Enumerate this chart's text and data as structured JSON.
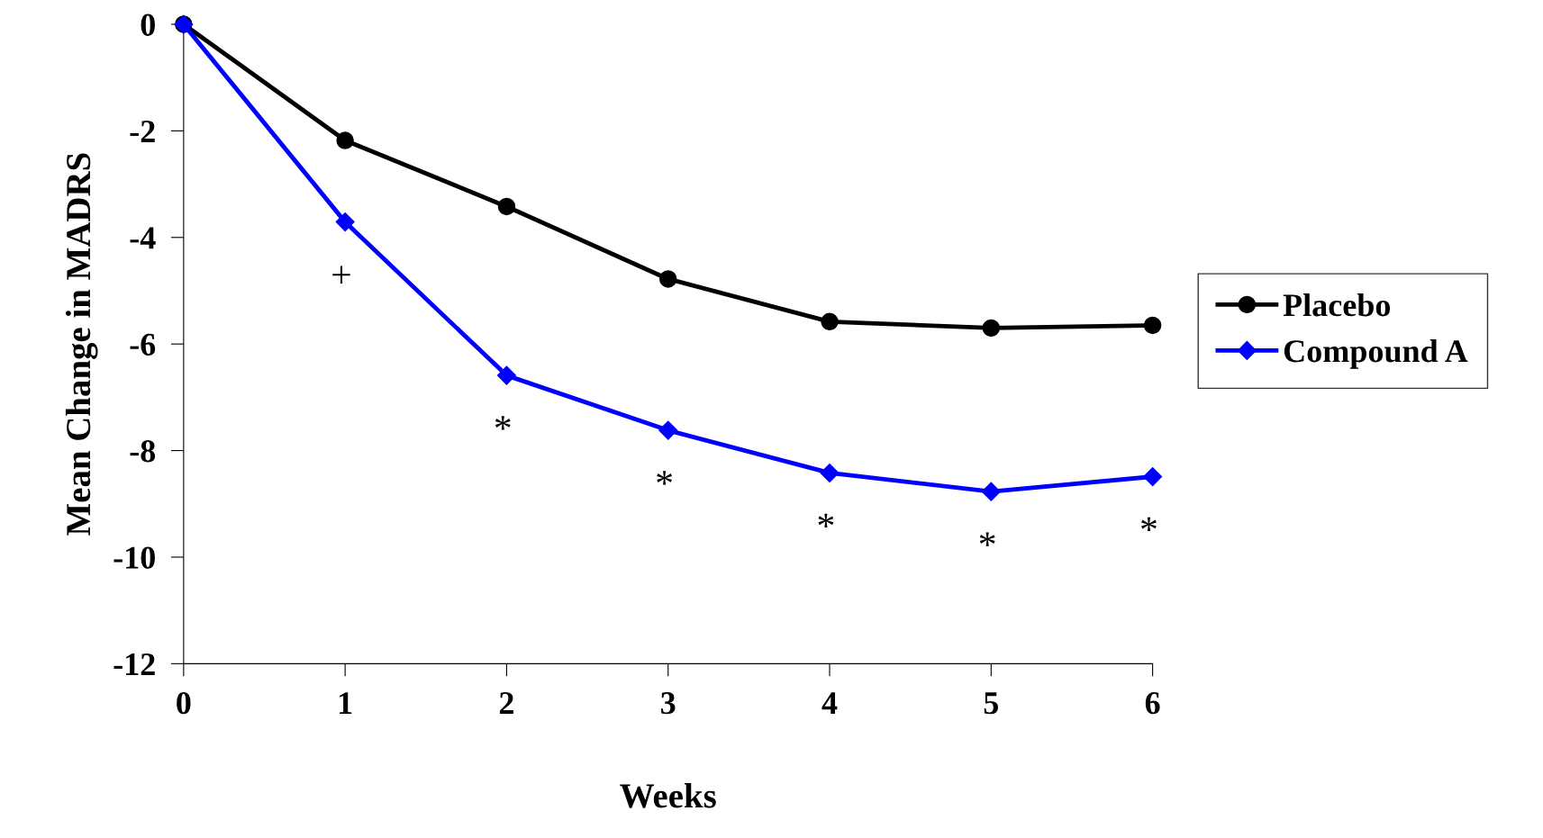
{
  "chart_data": {
    "type": "line",
    "xlabel": "Weeks",
    "ylabel": "Mean Change in MADRS",
    "x": [
      0,
      1,
      2,
      3,
      4,
      5,
      6
    ],
    "xlim": [
      0,
      6
    ],
    "xticks": [
      0,
      1,
      2,
      3,
      4,
      5,
      6
    ],
    "ylim": [
      -12,
      0
    ],
    "yticks": [
      -12,
      -10,
      -8,
      -6,
      -4,
      -2,
      0
    ],
    "series": [
      {
        "name": "Placebo",
        "color": "#000000",
        "marker": "circle",
        "values": [
          0,
          -2.18,
          -3.42,
          -4.78,
          -5.58,
          -5.7,
          -5.65
        ]
      },
      {
        "name": "Compound A",
        "color": "#0000ff",
        "marker": "diamond",
        "values": [
          0,
          -3.71,
          -6.59,
          -7.62,
          -8.42,
          -8.77,
          -8.49
        ]
      }
    ],
    "annotations": [
      {
        "text": "+",
        "x": 1,
        "y": -3.71
      },
      {
        "text": "*",
        "x": 2,
        "y": -6.59
      },
      {
        "text": "*",
        "x": 3,
        "y": -7.62
      },
      {
        "text": "*",
        "x": 4,
        "y": -8.42
      },
      {
        "text": "*",
        "x": 5,
        "y": -8.77
      },
      {
        "text": "*",
        "x": 6,
        "y": -8.49
      }
    ],
    "grid": false,
    "legend": "right",
    "line_style": "solid"
  }
}
